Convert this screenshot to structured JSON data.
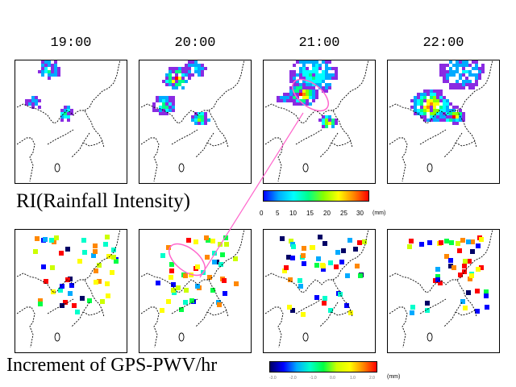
{
  "times": [
    "19:00",
    "20:00",
    "21:00",
    "22:00"
  ],
  "row1_label": "RI(Rainfall  Intensity)",
  "row2_label": "Increment of GPS-PWV/hr",
  "ri_colorbar": {
    "ticks": [
      "0",
      "5",
      "10",
      "15",
      "20",
      "25",
      "30"
    ],
    "unit": "(mm)",
    "colors": [
      "#0000ff",
      "#00aaff",
      "#00ffff",
      "#00ff88",
      "#88ff00",
      "#ffff00",
      "#ff8800",
      "#ff0000"
    ]
  },
  "pwv_colorbar": {
    "ticks": [
      "-3.0",
      "-2.0",
      "-1.0",
      "0.0",
      "1.0",
      "2.0"
    ],
    "unit": "(mm)",
    "colors": [
      "#000066",
      "#0000ff",
      "#00aaff",
      "#00ffcc",
      "#00ff44",
      "#ccff00",
      "#ffff00",
      "#ff8800",
      "#ff0000"
    ]
  }
}
